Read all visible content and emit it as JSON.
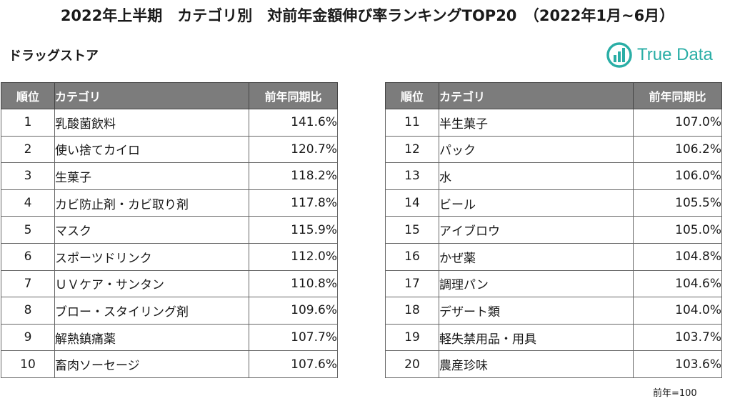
{
  "title": "2022年上半期　カテゴリ別　対前年金額伸び率ランキングTOP20　（2022年1月~6月）",
  "subtitle": "ドラッグストア",
  "logo": {
    "text": "True Data",
    "color": "#2aaea6"
  },
  "table": {
    "headers": [
      "順位",
      "カテゴリ",
      "前年同期比"
    ],
    "left_rows": [
      {
        "rank": "1",
        "category": "乳酸菌飲料",
        "value": "141.6%"
      },
      {
        "rank": "2",
        "category": "使い捨てカイロ",
        "value": "120.7%"
      },
      {
        "rank": "3",
        "category": "生菓子",
        "value": "118.2%"
      },
      {
        "rank": "4",
        "category": "カビ防止剤・カビ取り剤",
        "value": "117.8%"
      },
      {
        "rank": "5",
        "category": "マスク",
        "value": "115.9%"
      },
      {
        "rank": "6",
        "category": "スポーツドリンク",
        "value": "112.0%"
      },
      {
        "rank": "7",
        "category": "ＵＶケア・サンタン",
        "value": "110.8%"
      },
      {
        "rank": "8",
        "category": "ブロー・スタイリング剤",
        "value": "109.6%"
      },
      {
        "rank": "9",
        "category": "解熱鎮痛薬",
        "value": "107.7%"
      },
      {
        "rank": "10",
        "category": "畜肉ソーセージ",
        "value": "107.6%"
      }
    ],
    "right_rows": [
      {
        "rank": "11",
        "category": "半生菓子",
        "value": "107.0%"
      },
      {
        "rank": "12",
        "category": "パック",
        "value": "106.2%"
      },
      {
        "rank": "13",
        "category": "水",
        "value": "106.0%"
      },
      {
        "rank": "14",
        "category": "ビール",
        "value": "105.5%"
      },
      {
        "rank": "15",
        "category": "アイブロウ",
        "value": "105.0%"
      },
      {
        "rank": "16",
        "category": "かぜ薬",
        "value": "104.8%"
      },
      {
        "rank": "17",
        "category": "調理パン",
        "value": "104.6%"
      },
      {
        "rank": "18",
        "category": "デザート類",
        "value": "104.0%"
      },
      {
        "rank": "19",
        "category": "軽失禁用品・用具",
        "value": "103.7%"
      },
      {
        "rank": "20",
        "category": "農産珍味",
        "value": "103.6%"
      }
    ]
  },
  "note": "前年=100",
  "colors": {
    "header_bg": "#7c7c7c",
    "header_text": "#ffffff",
    "border": "#666666"
  }
}
